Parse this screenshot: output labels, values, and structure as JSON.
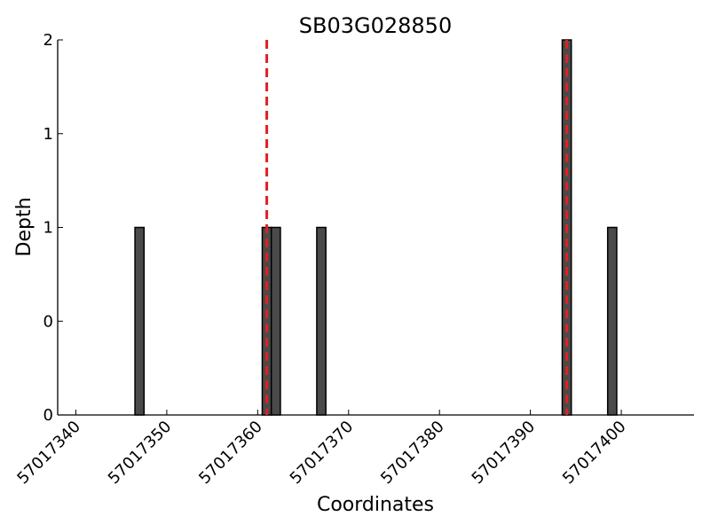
{
  "chart_data": {
    "type": "bar",
    "title": "SB03G028850",
    "xlabel": "Coordinates",
    "ylabel": "Depth",
    "xlim": [
      57017338,
      57017408
    ],
    "ylim": [
      0,
      2
    ],
    "x_ticks": [
      57017340,
      57017350,
      57017360,
      57017370,
      57017380,
      57017390,
      57017400
    ],
    "x_tick_labels": [
      "57017340",
      "57017350",
      "57017360",
      "57017370",
      "57017380",
      "57017390",
      "57017400"
    ],
    "y_ticks": [
      0,
      0.5,
      1,
      1.5,
      2
    ],
    "y_tick_labels": [
      "0",
      "0",
      "1",
      "1",
      "2"
    ],
    "bar_width": 1,
    "series": [
      {
        "x": [
          57017347,
          57017361,
          57017362,
          57017367,
          57017394,
          57017399
        ],
        "values": [
          1,
          1,
          1,
          1,
          2,
          1
        ]
      }
    ],
    "reference_lines": [
      57017361,
      57017394
    ],
    "bar_color": "#4a4a4a",
    "reference_line_color": "#e02020",
    "grid": false
  }
}
